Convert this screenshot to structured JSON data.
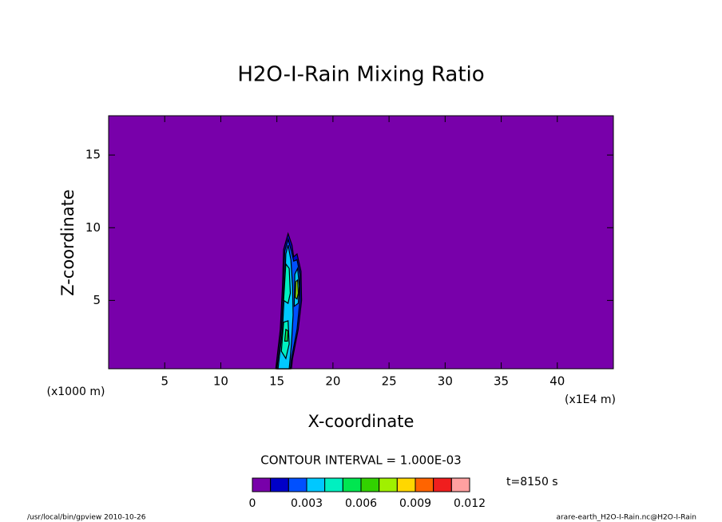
{
  "chart_data": {
    "type": "contour",
    "title": "H2O-I-Rain Mixing Ratio",
    "x_label": "X-coordinate",
    "y_label": "Z-coordinate",
    "x_unit": "(x1E4 m)",
    "y_unit": "(x1000 m)",
    "xlim": [
      0,
      45
    ],
    "xticks": [
      5,
      10,
      15,
      20,
      25,
      30,
      35,
      40
    ],
    "ylim": [
      0.3,
      17.7
    ],
    "yticks": [
      5,
      10,
      15
    ],
    "contour_interval_label": "CONTOUR INTERVAL = 1.000E-03",
    "time_label": "t=8150 s",
    "colorbar": {
      "levels": [
        0,
        0.001,
        0.002,
        0.003,
        0.004,
        0.005,
        0.006,
        0.007,
        0.008,
        0.009,
        0.01,
        0.011,
        0.012
      ],
      "colors": [
        "#7800aa",
        "#0000c8",
        "#0050ff",
        "#00c8ff",
        "#00f0c0",
        "#00e650",
        "#32d200",
        "#a0f000",
        "#ffd700",
        "#ff6400",
        "#f01e1e",
        "#ffa0a0"
      ],
      "ticks": [
        0,
        0.003,
        0.006,
        0.009,
        0.012
      ]
    },
    "footer_left": "/usr/local/bin/gpview  2010-10-26",
    "footer_right": "arare-earth_H2O-I-Rain.nc@H2O-I-Rain"
  }
}
